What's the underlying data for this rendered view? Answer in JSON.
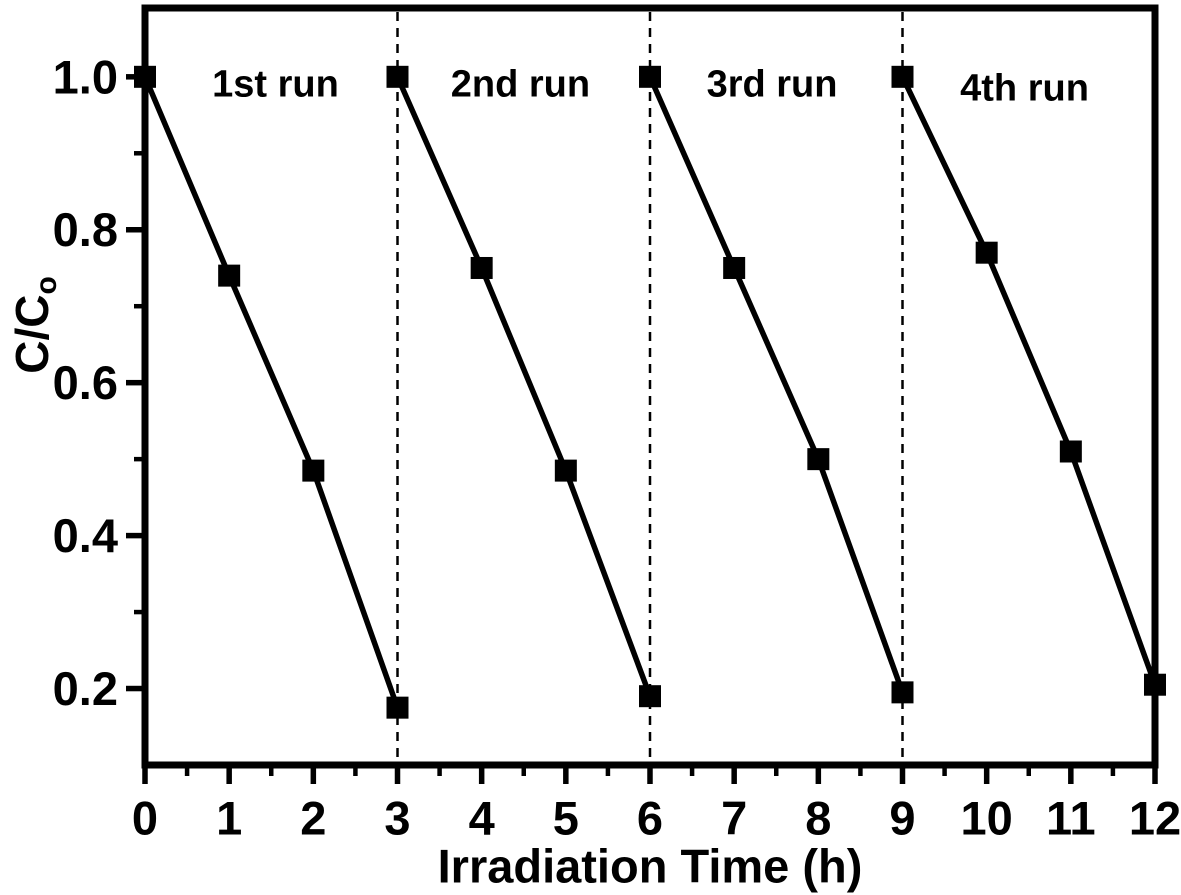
{
  "figure": {
    "background_color": "#ffffff",
    "ink_color": "#000000"
  },
  "chart_data": {
    "type": "line",
    "title": "",
    "xlabel": "Irradiation Time (h)",
    "ylabel": "C/C",
    "ylabel_subscript": "o",
    "xlim": [
      0,
      12
    ],
    "ylim": [
      0.1,
      1.09
    ],
    "x_major_ticks": [
      0,
      1,
      2,
      3,
      4,
      5,
      6,
      7,
      8,
      9,
      10,
      11,
      12
    ],
    "x_tick_labels": [
      "0",
      "1",
      "2",
      "3",
      "4",
      "5",
      "6",
      "7",
      "8",
      "9",
      "10",
      "11",
      "12"
    ],
    "x_minor_ticks": [
      0.5,
      1.5,
      2.5,
      3.5,
      4.5,
      5.5,
      6.5,
      7.5,
      8.5,
      9.5,
      10.5,
      11.5
    ],
    "y_major_ticks": [
      0.2,
      0.4,
      0.6,
      0.8,
      1.0
    ],
    "y_tick_labels": [
      "0.2",
      "0.4",
      "0.6",
      "0.8",
      "1.0"
    ],
    "y_minor_ticks": [
      0.3,
      0.5,
      0.7,
      0.9
    ],
    "grid": false,
    "legend": "none",
    "separator_lines_x": [
      3,
      6,
      9
    ],
    "marker_shape": "filled-square",
    "line_color": "#000000",
    "marker_color": "#000000",
    "series": [
      {
        "name": "1st run",
        "x": [
          0,
          1,
          2,
          3
        ],
        "y": [
          1.0,
          0.74,
          0.485,
          0.175
        ],
        "label_pos": [
          1.55,
          0.99
        ]
      },
      {
        "name": "2nd run",
        "x": [
          3,
          4,
          5,
          6
        ],
        "y": [
          1.0,
          0.75,
          0.485,
          0.19
        ],
        "label_pos": [
          4.46,
          0.99
        ]
      },
      {
        "name": "3rd run",
        "x": [
          6,
          7,
          8,
          9
        ],
        "y": [
          1.0,
          0.75,
          0.5,
          0.195
        ],
        "label_pos": [
          7.45,
          0.99
        ]
      },
      {
        "name": "4th run",
        "x": [
          9,
          10,
          11,
          12
        ],
        "y": [
          1.0,
          0.77,
          0.51,
          0.205
        ],
        "label_pos": [
          10.45,
          0.985
        ]
      }
    ]
  }
}
